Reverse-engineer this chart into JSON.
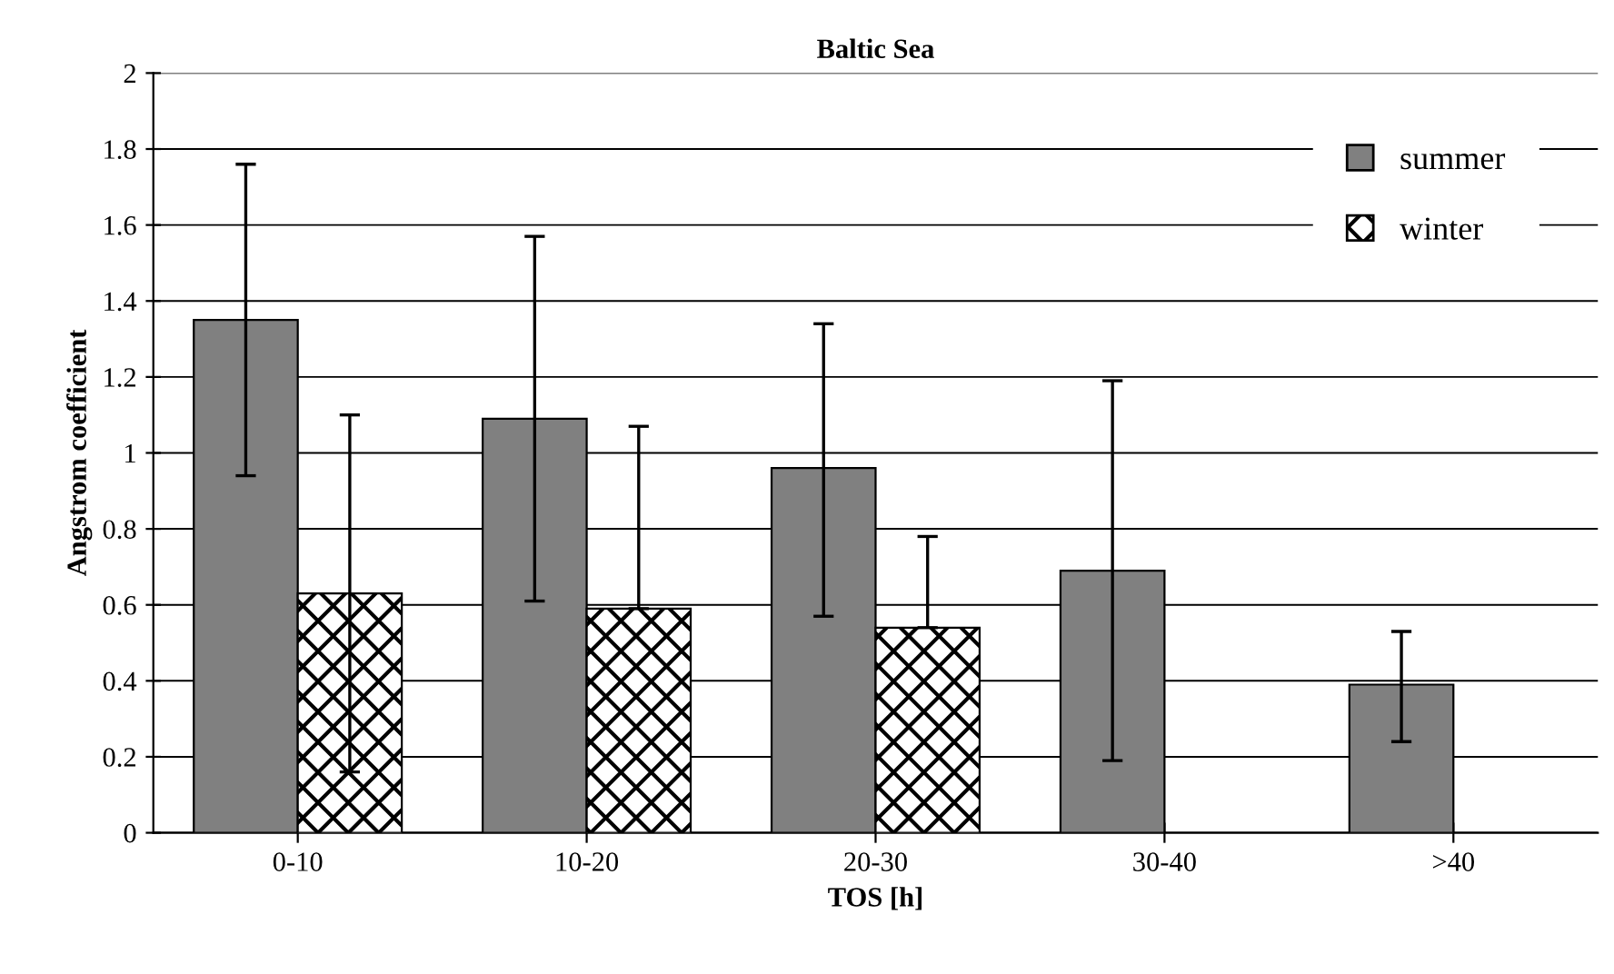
{
  "chart_data": {
    "type": "bar",
    "title": "Baltic Sea",
    "xlabel": "TOS [h]",
    "ylabel": "Angstrom coefficient",
    "categories": [
      "0-10",
      "10-20",
      "20-30",
      "30-40",
      ">40"
    ],
    "series": [
      {
        "name": "summer",
        "color": "#808080",
        "values": [
          1.35,
          1.09,
          0.96,
          0.69,
          0.39
        ],
        "errors": [
          [
            0.94,
            1.76
          ],
          [
            0.61,
            1.57
          ],
          [
            0.57,
            1.34
          ],
          [
            0.19,
            1.19
          ],
          [
            0.24,
            0.53
          ]
        ]
      },
      {
        "name": "winter",
        "color": "#000000",
        "values": [
          0.63,
          0.59,
          0.54,
          null,
          null
        ],
        "errors": [
          [
            0.16,
            1.1
          ],
          [
            0.59,
            1.07
          ],
          [
            0.54,
            0.78
          ],
          null,
          null
        ]
      }
    ],
    "ylim": [
      0,
      2
    ],
    "yticks": [
      0,
      0.2,
      0.4,
      0.6,
      0.8,
      1,
      1.2,
      1.4,
      1.6,
      1.8,
      2
    ],
    "grid": "y",
    "legend": "top right"
  }
}
